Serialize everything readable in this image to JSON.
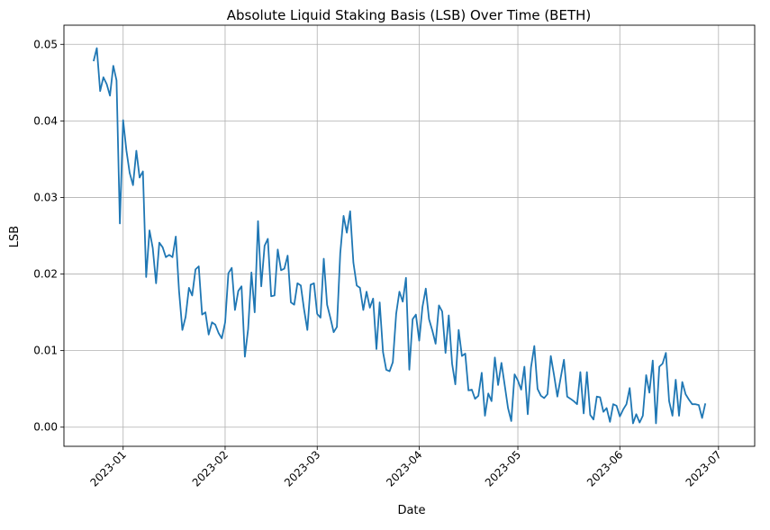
{
  "chart_data": {
    "type": "line",
    "title": "Absolute Liquid Staking Basis (LSB) Over Time (BETH)",
    "xlabel": "Date",
    "ylabel": "LSB",
    "grid": true,
    "line_color": "#1f77b4",
    "x_start": "2022-12-23",
    "x_frequency": "daily",
    "xlim_days_from_2023_01_01": [
      -18,
      192
    ],
    "ylim": [
      -0.0025,
      0.0525
    ],
    "x_ticks": [
      {
        "label": "2023-01",
        "day": 0
      },
      {
        "label": "2023-02",
        "day": 31
      },
      {
        "label": "2023-03",
        "day": 59
      },
      {
        "label": "2023-04",
        "day": 90
      },
      {
        "label": "2023-05",
        "day": 120
      },
      {
        "label": "2023-06",
        "day": 151
      },
      {
        "label": "2023-07",
        "day": 181
      }
    ],
    "y_ticks": [
      {
        "label": "0.00",
        "value": 0
      },
      {
        "label": "0.01",
        "value": 0.01
      },
      {
        "label": "0.02",
        "value": 0.02
      },
      {
        "label": "0.03",
        "value": 0.03
      },
      {
        "label": "0.04",
        "value": 0.04
      },
      {
        "label": "0.05",
        "value": 0.05
      }
    ],
    "values": [
      0.0478,
      0.0495,
      0.0439,
      0.0457,
      0.0448,
      0.0433,
      0.0472,
      0.0453,
      0.0266,
      0.0401,
      0.0361,
      0.0332,
      0.0316,
      0.0361,
      0.0326,
      0.0334,
      0.0196,
      0.0257,
      0.0234,
      0.0188,
      0.0241,
      0.0235,
      0.0222,
      0.0225,
      0.0222,
      0.0249,
      0.0178,
      0.0127,
      0.0144,
      0.0182,
      0.0172,
      0.0206,
      0.021,
      0.0147,
      0.015,
      0.0121,
      0.0137,
      0.0134,
      0.0123,
      0.0116,
      0.0137,
      0.0201,
      0.0208,
      0.0153,
      0.0178,
      0.0184,
      0.0092,
      0.0128,
      0.0202,
      0.015,
      0.0269,
      0.0184,
      0.0237,
      0.0246,
      0.0171,
      0.0172,
      0.0232,
      0.0205,
      0.0207,
      0.0224,
      0.0163,
      0.016,
      0.0188,
      0.0185,
      0.0154,
      0.0127,
      0.0186,
      0.0188,
      0.0148,
      0.0143,
      0.022,
      0.016,
      0.0143,
      0.0124,
      0.0131,
      0.0227,
      0.0276,
      0.0254,
      0.0282,
      0.0215,
      0.0185,
      0.0182,
      0.0153,
      0.0177,
      0.0156,
      0.0168,
      0.0102,
      0.0163,
      0.0098,
      0.0075,
      0.0073,
      0.0085,
      0.0148,
      0.0177,
      0.0164,
      0.0195,
      0.0075,
      0.0141,
      0.0147,
      0.0113,
      0.0157,
      0.0181,
      0.0141,
      0.0126,
      0.0109,
      0.0159,
      0.0151,
      0.0097,
      0.0146,
      0.0083,
      0.0056,
      0.0127,
      0.0093,
      0.0096,
      0.0048,
      0.0049,
      0.0037,
      0.0041,
      0.0071,
      0.0015,
      0.0044,
      0.0034,
      0.0091,
      0.0055,
      0.0084,
      0.0055,
      0.0025,
      0.0008,
      0.0069,
      0.0061,
      0.0049,
      0.0079,
      0.0017,
      0.0078,
      0.0106,
      0.005,
      0.0041,
      0.0038,
      0.0043,
      0.0093,
      0.0068,
      0.004,
      0.0064,
      0.0088,
      0.004,
      0.0037,
      0.0034,
      0.003,
      0.0072,
      0.0018,
      0.0072,
      0.0016,
      0.001,
      0.004,
      0.0039,
      0.002,
      0.0025,
      0.0007,
      0.003,
      0.0028,
      0.0014,
      0.0023,
      0.003,
      0.0051,
      0.0005,
      0.0017,
      0.0006,
      0.0015,
      0.0068,
      0.0045,
      0.0087,
      0.0005,
      0.0079,
      0.0083,
      0.0097,
      0.0034,
      0.0015,
      0.0062,
      0.0015,
      0.0059,
      0.0043,
      0.0036,
      0.003,
      0.003,
      0.0029,
      0.0012,
      0.0031
    ]
  }
}
